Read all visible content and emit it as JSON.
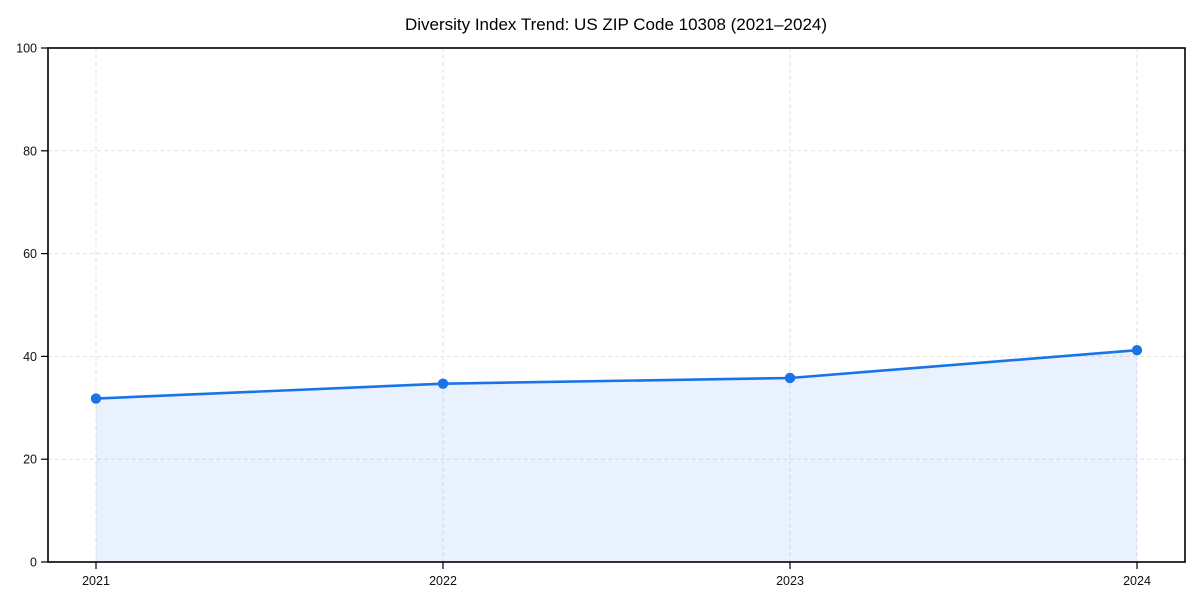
{
  "chart_data": {
    "type": "line",
    "title": "Diversity Index Trend: US ZIP Code 10308 (2021–2024)",
    "categories": [
      "2021",
      "2022",
      "2023",
      "2024"
    ],
    "values": [
      31.8,
      34.7,
      35.8,
      41.2
    ],
    "series_name": "Diversity Index",
    "xlabel": "",
    "ylabel": "",
    "ylim": [
      0,
      100
    ],
    "yticks": [
      0,
      20,
      40,
      60,
      80,
      100
    ],
    "grid": "dashed",
    "legend": "none",
    "area_fill": true,
    "colors": {
      "line": "#1a73e8",
      "marker": "#1a73e8",
      "fill": "#1a73e8",
      "fill_opacity": 0.1,
      "grid": "#e2e2e2",
      "spine": "#000000",
      "text": "#000000"
    }
  }
}
